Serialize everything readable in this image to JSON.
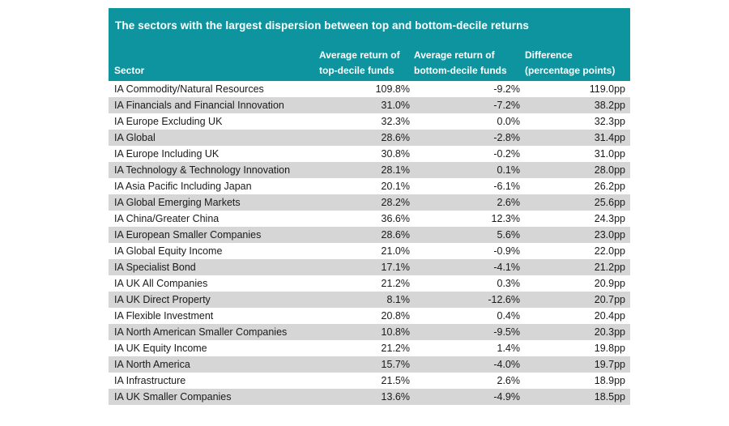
{
  "colors": {
    "header_teal": "#0d949e",
    "header_text": "#ffffff",
    "row_alt_gray": "#d6d6d6",
    "row_white": "#ffffff",
    "body_text": "#1a1a1a"
  },
  "chart_data": {
    "type": "table",
    "title": "The sectors with the largest dispersion between top and bottom-decile returns",
    "column_headers": [
      [
        "",
        "Sector"
      ],
      [
        "Average return of",
        "top-decile funds"
      ],
      [
        "Average return of",
        "bottom-decile funds"
      ],
      [
        "Difference",
        "(percentage points)"
      ]
    ],
    "rows": [
      {
        "sector": "IA Commodity/Natural Resources",
        "top": "109.8%",
        "bottom": "-9.2%",
        "diff": "119.0pp"
      },
      {
        "sector": "IA Financials and Financial Innovation",
        "top": "31.0%",
        "bottom": "-7.2%",
        "diff": "38.2pp"
      },
      {
        "sector": "IA Europe Excluding UK",
        "top": "32.3%",
        "bottom": "0.0%",
        "diff": "32.3pp"
      },
      {
        "sector": "IA Global",
        "top": "28.6%",
        "bottom": "-2.8%",
        "diff": "31.4pp"
      },
      {
        "sector": "IA Europe Including UK",
        "top": "30.8%",
        "bottom": "-0.2%",
        "diff": "31.0pp"
      },
      {
        "sector": "IA Technology & Technology Innovation",
        "top": "28.1%",
        "bottom": "0.1%",
        "diff": "28.0pp"
      },
      {
        "sector": "IA Asia Pacific Including Japan",
        "top": "20.1%",
        "bottom": "-6.1%",
        "diff": "26.2pp"
      },
      {
        "sector": "IA Global Emerging Markets",
        "top": "28.2%",
        "bottom": "2.6%",
        "diff": "25.6pp"
      },
      {
        "sector": "IA China/Greater China",
        "top": "36.6%",
        "bottom": "12.3%",
        "diff": "24.3pp"
      },
      {
        "sector": "IA European Smaller Companies",
        "top": "28.6%",
        "bottom": "5.6%",
        "diff": "23.0pp"
      },
      {
        "sector": "IA Global Equity Income",
        "top": "21.0%",
        "bottom": "-0.9%",
        "diff": "22.0pp"
      },
      {
        "sector": "IA Specialist Bond",
        "top": "17.1%",
        "bottom": "-4.1%",
        "diff": "21.2pp"
      },
      {
        "sector": "IA UK All Companies",
        "top": "21.2%",
        "bottom": "0.3%",
        "diff": "20.9pp"
      },
      {
        "sector": "IA UK Direct Property",
        "top": "8.1%",
        "bottom": "-12.6%",
        "diff": "20.7pp"
      },
      {
        "sector": "IA Flexible Investment",
        "top": "20.8%",
        "bottom": "0.4%",
        "diff": "20.4pp"
      },
      {
        "sector": "IA North American Smaller Companies",
        "top": "10.8%",
        "bottom": "-9.5%",
        "diff": "20.3pp"
      },
      {
        "sector": "IA UK Equity Income",
        "top": "21.2%",
        "bottom": "1.4%",
        "diff": "19.8pp"
      },
      {
        "sector": "IA North America",
        "top": "15.7%",
        "bottom": "-4.0%",
        "diff": "19.7pp"
      },
      {
        "sector": "IA Infrastructure",
        "top": "21.5%",
        "bottom": "2.6%",
        "diff": "18.9pp"
      },
      {
        "sector": "IA UK Smaller Companies",
        "top": "13.6%",
        "bottom": "-4.9%",
        "diff": "18.5pp"
      }
    ]
  }
}
